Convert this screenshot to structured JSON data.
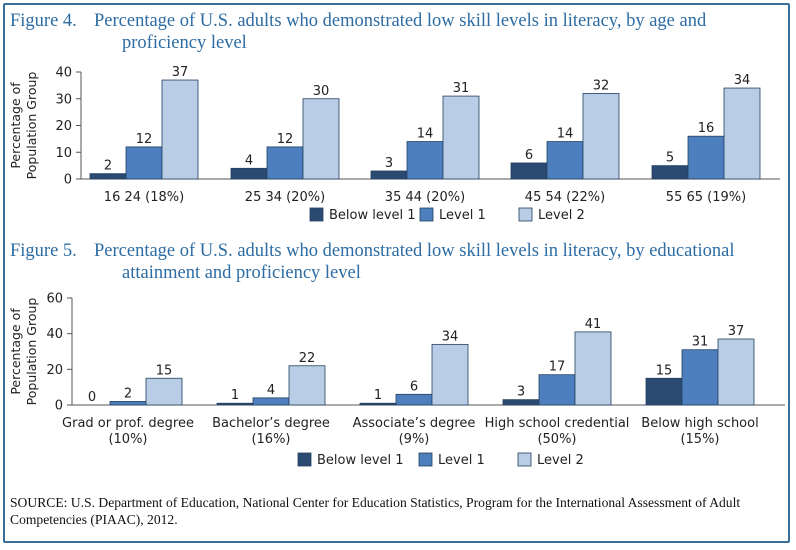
{
  "figure4": {
    "number": "Figure 4.",
    "title_line1": "Percentage of U.S. adults who demonstrated low skill levels in literacy, by age and",
    "title_line2": "proficiency level"
  },
  "figure5": {
    "number": "Figure 5.",
    "title_line1": "Percentage of U.S. adults who demonstrated low skill levels in literacy, by educational",
    "title_line2": "attainment and proficiency level"
  },
  "source": "SOURCE: U.S. Department of Education, National Center for Education Statistics, Program for the International Assessment of Adult Competencies (PIAAC), 2012.",
  "colors": {
    "below_level_1": "#2b4a72",
    "level_1": "#4d7fbf",
    "level_2": "#b9cde6",
    "bar_stroke": "#24405f",
    "title": "#2d6ca3",
    "frame": "#3a6f9c"
  },
  "chart_data": [
    {
      "type": "bar",
      "title": "Percentage of U.S. adults who demonstrated low skill levels in literacy, by age and proficiency level",
      "ylabel": [
        "Percentage of",
        "Population Group"
      ],
      "ylim": [
        0,
        40
      ],
      "yticks": [
        0,
        10,
        20,
        30,
        40
      ],
      "grid": false,
      "legend_position": "bottom-center",
      "categories": [
        [
          "16 24 (18%)"
        ],
        [
          "25 34 (20%)"
        ],
        [
          "35 44 (20%)"
        ],
        [
          "45 54 (22%)"
        ],
        [
          "55 65 (19%)"
        ]
      ],
      "series": [
        {
          "name": "Below level 1",
          "values": [
            2,
            4,
            3,
            6,
            5
          ]
        },
        {
          "name": "Level 1",
          "values": [
            12,
            12,
            14,
            14,
            16
          ]
        },
        {
          "name": "Level 2",
          "values": [
            37,
            30,
            31,
            32,
            34
          ]
        }
      ]
    },
    {
      "type": "bar",
      "title": "Percentage of U.S. adults who demonstrated low skill levels in literacy, by educational attainment and proficiency level",
      "ylabel": [
        "Percentage of",
        "Population Group"
      ],
      "ylim": [
        0,
        60
      ],
      "yticks": [
        0,
        20,
        40,
        60
      ],
      "grid": false,
      "legend_position": "bottom-center",
      "categories": [
        [
          "Grad or prof. degree",
          "(10%)"
        ],
        [
          "Bachelor’s degree",
          "(16%)"
        ],
        [
          "Associate’s degree",
          "(9%)"
        ],
        [
          "High school credential",
          "(50%)"
        ],
        [
          "Below high school",
          "(15%)"
        ]
      ],
      "series": [
        {
          "name": "Below level 1",
          "values": [
            0,
            1,
            1,
            3,
            15
          ]
        },
        {
          "name": "Level 1",
          "values": [
            2,
            4,
            6,
            17,
            31
          ]
        },
        {
          "name": "Level 2",
          "values": [
            15,
            22,
            34,
            41,
            37
          ]
        }
      ]
    }
  ]
}
